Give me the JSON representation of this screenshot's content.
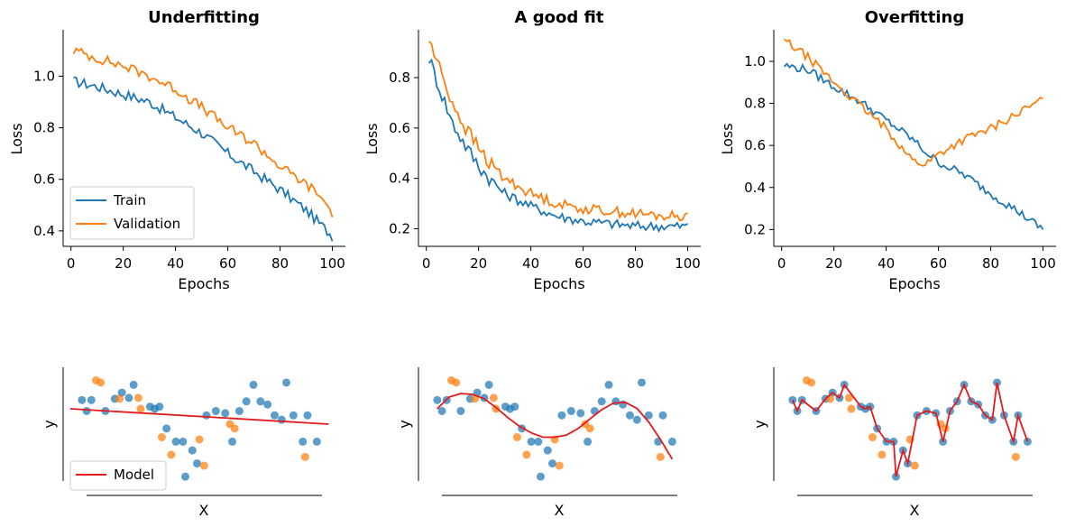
{
  "colors": {
    "train": "#1f77b4",
    "validation": "#ff7f0e",
    "model": "#e41a1c",
    "scatter_blue": "#1f77b4",
    "scatter_orange": "#ff7f0e"
  },
  "chart_data": [
    {
      "type": "line",
      "title": "Underfitting",
      "xlabel": "Epochs",
      "ylabel": "Loss",
      "xlim": [
        -3,
        105
      ],
      "ylim": [
        0.34,
        1.18
      ],
      "xticks": [
        0,
        20,
        40,
        60,
        80,
        100
      ],
      "xtick_labels": [
        "0",
        "20",
        "40",
        "60",
        "80",
        "100"
      ],
      "yticks": [
        0.4,
        0.6,
        0.8,
        1.0
      ],
      "ytick_labels": [
        "0.4",
        "0.6",
        "0.8",
        "1.0"
      ],
      "legend": {
        "placement": "lower-left",
        "entries": [
          "Train",
          "Validation"
        ]
      },
      "series": [
        {
          "name": "Train",
          "x": [
            1,
            10,
            20,
            30,
            40,
            50,
            60,
            70,
            80,
            90,
            95,
            100
          ],
          "values": [
            0.98,
            0.96,
            0.93,
            0.9,
            0.84,
            0.78,
            0.7,
            0.63,
            0.56,
            0.48,
            0.43,
            0.38
          ]
        },
        {
          "name": "Validation",
          "x": [
            1,
            10,
            20,
            30,
            40,
            50,
            60,
            70,
            80,
            90,
            95,
            100
          ],
          "values": [
            1.1,
            1.07,
            1.04,
            1.0,
            0.95,
            0.88,
            0.8,
            0.74,
            0.65,
            0.58,
            0.54,
            0.47
          ]
        }
      ]
    },
    {
      "type": "line",
      "title": "A good fit",
      "xlabel": "Epochs",
      "ylabel": "Loss",
      "xlim": [
        -3,
        105
      ],
      "ylim": [
        0.13,
        0.99
      ],
      "xticks": [
        0,
        20,
        40,
        60,
        80,
        100
      ],
      "xtick_labels": [
        "0",
        "20",
        "40",
        "60",
        "80",
        "100"
      ],
      "yticks": [
        0.2,
        0.4,
        0.6,
        0.8
      ],
      "ytick_labels": [
        "0.2",
        "0.4",
        "0.6",
        "0.8"
      ],
      "series": [
        {
          "name": "Train",
          "x": [
            1,
            5,
            10,
            15,
            20,
            25,
            30,
            40,
            50,
            60,
            70,
            80,
            90,
            100
          ],
          "values": [
            0.88,
            0.76,
            0.62,
            0.53,
            0.45,
            0.39,
            0.34,
            0.29,
            0.25,
            0.23,
            0.22,
            0.21,
            0.21,
            0.21
          ]
        },
        {
          "name": "Validation",
          "x": [
            1,
            5,
            10,
            15,
            20,
            25,
            30,
            40,
            50,
            60,
            70,
            80,
            90,
            100
          ],
          "values": [
            0.95,
            0.84,
            0.7,
            0.6,
            0.52,
            0.45,
            0.4,
            0.34,
            0.3,
            0.28,
            0.27,
            0.26,
            0.25,
            0.25
          ]
        }
      ]
    },
    {
      "type": "line",
      "title": "Overfitting",
      "xlabel": "Epochs",
      "ylabel": "Loss",
      "xlim": [
        -3,
        105
      ],
      "ylim": [
        0.12,
        1.15
      ],
      "xticks": [
        0,
        20,
        40,
        60,
        80,
        100
      ],
      "xtick_labels": [
        "0",
        "20",
        "40",
        "60",
        "80",
        "100"
      ],
      "yticks": [
        0.2,
        0.4,
        0.6,
        0.8,
        1.0
      ],
      "ytick_labels": [
        "0.2",
        "0.4",
        "0.6",
        "0.8",
        "1.0"
      ],
      "series": [
        {
          "name": "Train",
          "x": [
            1,
            10,
            20,
            30,
            40,
            50,
            55,
            60,
            70,
            80,
            90,
            100
          ],
          "values": [
            0.98,
            0.96,
            0.88,
            0.81,
            0.72,
            0.63,
            0.57,
            0.52,
            0.46,
            0.37,
            0.29,
            0.2
          ]
        },
        {
          "name": "Validation",
          "x": [
            1,
            10,
            20,
            30,
            40,
            50,
            55,
            60,
            70,
            80,
            90,
            100
          ],
          "values": [
            1.1,
            1.02,
            0.9,
            0.79,
            0.68,
            0.53,
            0.51,
            0.56,
            0.63,
            0.68,
            0.75,
            0.82
          ]
        }
      ]
    },
    {
      "type": "scatter",
      "title": "",
      "xlabel": "X",
      "ylabel": "y",
      "xlim": [
        -0.08,
        1.06
      ],
      "ylim": [
        -1.3,
        1.3
      ],
      "legend": {
        "placement": "lower-left",
        "entries": [
          "Model"
        ]
      },
      "series": [
        {
          "name": "",
          "color": "blue",
          "x": [
            0.0,
            0.02,
            0.04,
            0.1,
            0.14,
            0.17,
            0.2,
            0.22,
            0.29,
            0.31,
            0.33,
            0.36,
            0.4,
            0.43,
            0.44,
            0.47,
            0.49,
            0.53,
            0.57,
            0.61,
            0.64,
            0.67,
            0.7,
            0.73,
            0.76,
            0.79,
            0.82,
            0.85,
            0.87,
            0.9,
            0.94,
            0.96,
            1.0
          ],
          "values": [
            0.55,
            0.3,
            0.55,
            0.3,
            0.58,
            0.72,
            0.6,
            0.9,
            0.4,
            0.35,
            0.4,
            -0.1,
            -0.4,
            -0.4,
            -1.2,
            -0.6,
            -0.9,
            0.2,
            0.3,
            0.25,
            -0.4,
            0.3,
            0.52,
            0.9,
            0.52,
            0.45,
            0.2,
            0.1,
            0.95,
            0.2,
            -0.4,
            0.2,
            -0.4
          ]
        },
        {
          "name": "",
          "color": "orange",
          "x": [
            0.06,
            0.08,
            0.16,
            0.24,
            0.25,
            0.34,
            0.38,
            0.5,
            0.52,
            0.63,
            0.65,
            0.95
          ],
          "values": [
            1.0,
            0.95,
            0.58,
            0.6,
            0.35,
            -0.3,
            -0.7,
            -0.35,
            -0.95,
            0.0,
            -0.1,
            -0.75
          ]
        }
      ],
      "line": {
        "name": "Model",
        "x": [
          -0.05,
          1.05
        ],
        "values": [
          0.35,
          0.0
        ]
      }
    },
    {
      "type": "scatter",
      "title": "",
      "xlabel": "X",
      "ylabel": "y",
      "xlim": [
        -0.08,
        1.06
      ],
      "ylim": [
        -1.3,
        1.3
      ],
      "series": [
        {
          "name": "",
          "color": "blue",
          "x": [
            0.0,
            0.02,
            0.04,
            0.1,
            0.14,
            0.17,
            0.2,
            0.22,
            0.29,
            0.31,
            0.33,
            0.36,
            0.4,
            0.43,
            0.44,
            0.47,
            0.49,
            0.53,
            0.57,
            0.61,
            0.64,
            0.67,
            0.7,
            0.73,
            0.76,
            0.79,
            0.82,
            0.85,
            0.87,
            0.9,
            0.94,
            0.96,
            1.0
          ],
          "values": [
            0.55,
            0.3,
            0.55,
            0.3,
            0.58,
            0.72,
            0.6,
            0.9,
            0.4,
            0.35,
            0.4,
            -0.1,
            -0.4,
            -0.4,
            -1.2,
            -0.6,
            -0.9,
            0.2,
            0.3,
            0.25,
            -0.4,
            0.3,
            0.52,
            0.9,
            0.52,
            0.45,
            0.2,
            0.1,
            0.95,
            0.2,
            -0.4,
            0.2,
            -0.4
          ]
        },
        {
          "name": "",
          "color": "orange",
          "x": [
            0.06,
            0.08,
            0.16,
            0.24,
            0.25,
            0.34,
            0.38,
            0.5,
            0.52,
            0.63,
            0.65,
            0.95
          ],
          "values": [
            1.0,
            0.95,
            0.58,
            0.6,
            0.35,
            -0.3,
            -0.7,
            -0.35,
            -0.95,
            0.0,
            -0.1,
            -0.75
          ]
        }
      ],
      "line": {
        "name": "Model",
        "x": [
          0.0,
          0.05,
          0.1,
          0.15,
          0.2,
          0.25,
          0.3,
          0.35,
          0.4,
          0.45,
          0.5,
          0.55,
          0.6,
          0.65,
          0.7,
          0.75,
          0.8,
          0.85,
          0.9,
          0.95,
          1.0
        ],
        "values": [
          0.35,
          0.62,
          0.7,
          0.68,
          0.58,
          0.38,
          0.15,
          -0.05,
          -0.2,
          -0.3,
          -0.3,
          -0.25,
          -0.1,
          0.12,
          0.33,
          0.48,
          0.5,
          0.36,
          0.05,
          -0.35,
          -0.8
        ]
      }
    },
    {
      "type": "scatter",
      "title": "",
      "xlabel": "X",
      "ylabel": "y",
      "xlim": [
        -0.08,
        1.06
      ],
      "ylim": [
        -1.3,
        1.3
      ],
      "series": [
        {
          "name": "",
          "color": "blue",
          "x": [
            0.0,
            0.02,
            0.04,
            0.1,
            0.14,
            0.17,
            0.2,
            0.22,
            0.29,
            0.31,
            0.33,
            0.36,
            0.4,
            0.43,
            0.44,
            0.47,
            0.49,
            0.53,
            0.57,
            0.61,
            0.64,
            0.67,
            0.7,
            0.73,
            0.76,
            0.79,
            0.82,
            0.85,
            0.87,
            0.9,
            0.94,
            0.96,
            1.0
          ],
          "values": [
            0.55,
            0.3,
            0.55,
            0.3,
            0.58,
            0.72,
            0.6,
            0.9,
            0.4,
            0.35,
            0.4,
            -0.1,
            -0.4,
            -0.4,
            -1.2,
            -0.6,
            -0.9,
            0.2,
            0.3,
            0.25,
            -0.4,
            0.3,
            0.52,
            0.9,
            0.52,
            0.45,
            0.2,
            0.1,
            0.95,
            0.2,
            -0.4,
            0.2,
            -0.4
          ]
        },
        {
          "name": "",
          "color": "orange",
          "x": [
            0.06,
            0.08,
            0.16,
            0.24,
            0.25,
            0.34,
            0.38,
            0.5,
            0.52,
            0.63,
            0.65,
            0.95
          ],
          "values": [
            1.0,
            0.95,
            0.58,
            0.6,
            0.35,
            -0.3,
            -0.7,
            -0.35,
            -0.95,
            0.0,
            -0.1,
            -0.75
          ]
        }
      ],
      "line": {
        "name": "Model",
        "x": [
          0.0,
          0.02,
          0.04,
          0.1,
          0.14,
          0.17,
          0.2,
          0.22,
          0.29,
          0.31,
          0.33,
          0.36,
          0.4,
          0.43,
          0.44,
          0.47,
          0.49,
          0.53,
          0.57,
          0.61,
          0.64,
          0.67,
          0.7,
          0.73,
          0.76,
          0.79,
          0.82,
          0.85,
          0.87,
          0.9,
          0.94,
          0.96,
          1.0
        ],
        "values": [
          0.55,
          0.3,
          0.55,
          0.3,
          0.58,
          0.72,
          0.6,
          0.9,
          0.4,
          0.35,
          0.4,
          -0.1,
          -0.4,
          -0.4,
          -1.2,
          -0.6,
          -0.9,
          0.2,
          0.3,
          0.25,
          -0.4,
          0.3,
          0.52,
          0.9,
          0.52,
          0.45,
          0.2,
          0.1,
          0.95,
          0.2,
          -0.4,
          0.2,
          -0.4
        ]
      }
    }
  ]
}
